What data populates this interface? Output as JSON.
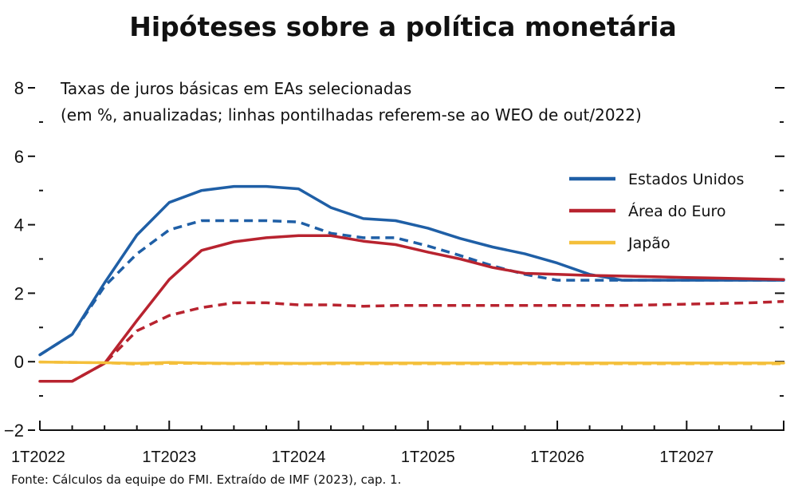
{
  "title": "Hipóteses sobre a política monetária",
  "source": "Fonte: Cálculos da equipe do FMI. Extraído de IMF (2023), cap. 1.",
  "chart_data": {
    "type": "line",
    "subtitle_lines": [
      "Taxas de juros básicas em EAs selecionadas",
      "(em %, anualizadas; linhas pontilhadas referem-se ao WEO de out/2022)"
    ],
    "x_tick_labels": [
      "1T2022",
      "1T2023",
      "1T2024",
      "1T2025",
      "1T2026",
      "1T2027"
    ],
    "y_ticks": [
      -2,
      0,
      2,
      4,
      6,
      8
    ],
    "y_tick_labels": [
      "−2",
      "0",
      "2",
      "4",
      "6",
      "8"
    ],
    "ylim": [
      -2,
      8
    ],
    "xlim_quarters": [
      0,
      23
    ],
    "grid": false,
    "legend_position": "top-right",
    "series": [
      {
        "name": "Estados Unidos",
        "color": "#1f5fa6",
        "dashed": false,
        "x": [
          0,
          1,
          2,
          3,
          4,
          5,
          6,
          7,
          8,
          9,
          10,
          11,
          12,
          13,
          14,
          15,
          16,
          17,
          18,
          19,
          20,
          21,
          22,
          23
        ],
        "values": [
          0.2,
          0.8,
          2.3,
          3.7,
          4.65,
          5.0,
          5.12,
          5.12,
          5.05,
          4.5,
          4.18,
          4.12,
          3.9,
          3.6,
          3.35,
          3.15,
          2.88,
          2.55,
          2.38,
          2.38,
          2.38,
          2.38,
          2.38,
          2.38
        ]
      },
      {
        "name": "",
        "color": "#1f5fa6",
        "dashed": true,
        "x": [
          0,
          1,
          2,
          3,
          4,
          5,
          6,
          7,
          8,
          9,
          10,
          11,
          12,
          13,
          14,
          15,
          16,
          17,
          18,
          19,
          20,
          21,
          22,
          23
        ],
        "values": [
          0.2,
          0.8,
          2.2,
          3.15,
          3.85,
          4.12,
          4.12,
          4.12,
          4.08,
          3.75,
          3.62,
          3.62,
          3.38,
          3.1,
          2.8,
          2.55,
          2.38,
          2.38,
          2.38,
          2.38,
          2.38,
          2.38,
          2.38,
          2.38
        ]
      },
      {
        "name": "Área do Euro",
        "color": "#b8232f",
        "dashed": false,
        "x": [
          0,
          1,
          2,
          3,
          4,
          5,
          6,
          7,
          8,
          9,
          10,
          11,
          12,
          13,
          14,
          15,
          16,
          17,
          18,
          19,
          20,
          21,
          22,
          23
        ],
        "values": [
          -0.57,
          -0.57,
          -0.05,
          1.2,
          2.4,
          3.25,
          3.5,
          3.62,
          3.68,
          3.68,
          3.52,
          3.42,
          3.2,
          3.0,
          2.75,
          2.58,
          2.55,
          2.52,
          2.5,
          2.48,
          2.46,
          2.44,
          2.42,
          2.4
        ]
      },
      {
        "name": "",
        "color": "#b8232f",
        "dashed": true,
        "x": [
          0,
          1,
          2,
          3,
          4,
          5,
          6,
          7,
          8,
          9,
          10,
          11,
          12,
          13,
          14,
          15,
          16,
          17,
          18,
          19,
          20,
          21,
          22,
          23
        ],
        "values": [
          -0.57,
          -0.57,
          -0.05,
          0.9,
          1.35,
          1.58,
          1.72,
          1.72,
          1.66,
          1.66,
          1.62,
          1.64,
          1.64,
          1.64,
          1.64,
          1.64,
          1.64,
          1.64,
          1.64,
          1.66,
          1.68,
          1.7,
          1.72,
          1.76
        ]
      },
      {
        "name": "Japão",
        "color": "#f4bf3a",
        "dashed": false,
        "x": [
          0,
          1,
          2,
          3,
          4,
          5,
          6,
          7,
          8,
          9,
          10,
          11,
          12,
          13,
          14,
          15,
          16,
          17,
          18,
          19,
          20,
          21,
          22,
          23
        ],
        "values": [
          -0.01,
          -0.02,
          -0.03,
          -0.05,
          -0.02,
          -0.04,
          -0.05,
          -0.04,
          -0.05,
          -0.04,
          -0.04,
          -0.04,
          -0.04,
          -0.04,
          -0.04,
          -0.04,
          -0.04,
          -0.04,
          -0.04,
          -0.04,
          -0.04,
          -0.04,
          -0.04,
          -0.04
        ]
      },
      {
        "name": "",
        "color": "#f4bf3a",
        "dashed": true,
        "x": [
          0,
          1,
          2,
          3,
          4,
          5,
          6,
          7,
          8,
          9,
          10,
          11,
          12,
          13,
          14,
          15,
          16,
          17,
          18,
          19,
          20,
          21,
          22,
          23
        ],
        "values": [
          -0.01,
          -0.02,
          -0.03,
          -0.07,
          -0.05,
          -0.05,
          -0.06,
          -0.06,
          -0.06,
          -0.06,
          -0.06,
          -0.06,
          -0.06,
          -0.06,
          -0.06,
          -0.06,
          -0.06,
          -0.06,
          -0.06,
          -0.06,
          -0.06,
          -0.06,
          -0.06,
          -0.06
        ]
      }
    ]
  }
}
